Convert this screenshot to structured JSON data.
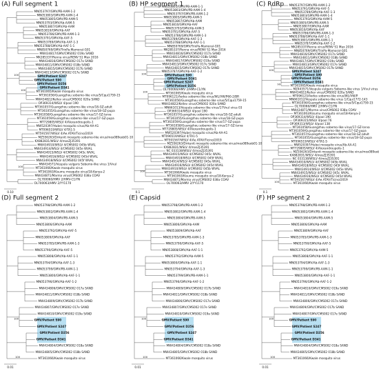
{
  "panels": [
    {
      "title": "(A) Full segment 1",
      "scale": "0.10",
      "leaves": [
        "MN053797/GMV/PB-AAM-1-2",
        "MN053803/GMV/PB-AAM-1-4",
        "MN053805/GMV/PB-AAM-5",
        "MN053793/GMV/Ab-AAM-5",
        "MN053807/GMV/Ab-AAM",
        "MN053810/GMV/Ab-AAF",
        "MN053786/GMV/PB-AAM-1-3",
        "MN053791/GMV/Ab-AAF-5",
        "MN053789/GMV/Ab-AAF-1-3",
        "MN053788/GMV/Ab-AAF-1-1",
        "MN850769/GMV/TrinPa-Mamoral-G01",
        "MW434817/GMV/CMS002 019a SAND",
        "MK285337/Renna virus/RENV S1 Max 2016",
        "MW434816/GMV/CMS002 017a SAND",
        "MW434811/GMV/CMS002 018b SAND",
        "MW434815/GMV/CMS002 017b SAND",
        "MW434813/GMV/CMS002 017e SAND",
        {
          "label": "GMV/Patient S247",
          "highlighted": true,
          "support": 100
        },
        {
          "label": "GMV/Patient S90",
          "highlighted": true
        },
        {
          "label": "GMV/Patient D256",
          "highlighted": true
        },
        {
          "label": "GMV/Patient D341",
          "highlighted": true
        },
        {
          "label": "MT361065/Kwale mosquito virus",
          "support": 100
        },
        "MT361056/Guangzhou sobemo-like virus/5/Cqui1759-15",
        "MW434822/Kellev virus/CMS002 020a SAND",
        "OP369314/WSLV 4/pool 190",
        "MT361057/Guangzhou sobemo-like virus/18-GZ-adult",
        "MT361055/Guangzhou sobemo-like virus/18-GZ-pupa",
        "MT361058/Guangzhou sobemo-like virus/17-GZ-larva",
        "MT361059/Guangzhou sobemo-like virus/17-GZ-pupa",
        "MT729805/WSLV 4/Alexandroupolis-1",
        "MW520397/Hubei mosquito virus/Ab-AA-A1",
        "MT096519/WSLV 4/TA1-5",
        "MT591567/WSLV 4/Ae.ATAV/Ticino/2019",
        "MZ556263/Dirkunit mosquito sobemo-like virus/mos089eob01-10",
        "KX882831/WSLV 4/mosZJ35391",
        "MW434910/WSLV 4/CMS002 045b WVAL",
        "MW434914/WSLV 4/CMS002 045e WVAL",
        "MW434915/WSLV 4/CMS002 045c WVAL",
        "MW434916/WSLV 4/CMS002 045d WVAL",
        "MW434918/WSLV 4/CMS002 045f WVAL",
        "MW434571/Vespula vulgaris Sobemo-like virus 1/Vvul",
        {
          "label": "MT361066/Kwale mosquito virus",
          "support": 100
        },
        "MT361063/Kisumu mosquito virus/18-Kenya-2",
        "MW434871/Marma virus/CMS002 038a COAV",
        "OL700060/HMV 2/HMV-C1/YN",
        "OL700063/HMV 2/YY1170"
      ]
    },
    {
      "title": "(B) HP segment 1",
      "scale": "0.1",
      "leaves": [
        "MN053801/GMV/PB-AAM-1-1",
        "MN053803/GMV/PB-AAM-1-4",
        "MN053797/GMV/PB-AAM-1-2",
        "MN053805/GMV/PB-AAM-5",
        "MN053807/GMV/Ab-AAM",
        "MN053810/GMV/Ab-AAF",
        "MN053793/GMV/Ab-AAM-5",
        "MN053791/GMV/Ab-AAF-5",
        "MN053786/GMV/PB-AAM-1-3",
        "MN053789/GMV/Ab-AAF-1-3",
        "MN053788/GMV/Ab-AAF-1-1",
        "MN850769/GMV/TrinPa-Mamoral-G01",
        "MK285337/Renna virus/RENV S1 Max 2016",
        "MW434816/GMV/CMS002 017a SAND",
        "MW434811/GMV/CMS002 018b SAND",
        "MW434817/GMV/CMS002 019a SAND",
        "MW434813/GMV/CMS002 017e SAND",
        "MW434815/GMV/CMS002 017b SAND",
        "MN053787/GMV/Ab-AAF-1-2",
        {
          "label": "GMV/Patient S90",
          "highlighted": true,
          "support": 100
        },
        {
          "label": "GMV/Patient D341",
          "highlighted": true
        },
        {
          "label": "GMV/Patient S247",
          "highlighted": true
        },
        {
          "label": "GMV/Patient D256",
          "highlighted": true
        },
        "OL700066/HMV 2/HMV-C1/YN",
        {
          "label": "MT361065/Kwale mosquito virus",
          "support": 100
        },
        "MT096121/Aedes sobemo-like virus/WL/VW/P60-2/BR",
        "MT361056/Guangzhou sobemo-like virus/5/Cqui1759-15",
        "MW434822/Kellev virus/CMS002 020a SAND",
        "MN661013/Vespula sobemo-like virus/17Vvul virus 03",
        "OP369314/WSLV 4/pool 190",
        "MT361057/Guangzhou sobemo-like virus/18-GZ-adult",
        "MT361055/Guangzhou sobemo-like virus/18-GZ-pupa",
        "MT361059/Guangzhou sobemo-like virus/17-GZ-pupa",
        "MT361058/Guangzhou sobemo-like virus/17-GZ-larva",
        "MT729805/WSLV 4/Alexandroupolis-1",
        "MW520397/Hubei mosquito virus/Ab-AA-A1",
        "MT096519/WSLV 4/TA1-5",
        "MT591567/WSLV 4/Ae.ATAV/Ticino/2019",
        "MZ556263/Dirkunit mosquito sobemo-like virus/mos089eob01-10",
        "KX882831/WSLV 4/mosZJ35391",
        "NC 033138/WSLV 4/mosZJ35391",
        "MW434915/WSLV 4/CMS002 045c WVAL",
        "MW434918/WSLV 4/CMS002 045f WVAL",
        "MW434914/WSLV 4/CMS002 045e WVAL",
        "MW434916/WSLV 4/CMS002 045d WVAL",
        "MW434910/WSLV 4/CMS002 045b WVAL",
        {
          "label": "MT361066/Kwale mosquito virus",
          "support": 100
        },
        "MT361063/Kisumu mosquito virus/18-Kenya-2",
        "MW434871/Marma virus/CMS002 038a COAV",
        "OL700063/HMV 2/YY1170"
      ]
    },
    {
      "title": "(C) RdRp",
      "scale": "0.1",
      "leaves": [
        "MN053797/GMV/PB-AAM-1-2",
        "MN053791/GMV/Ab-AAF-5",
        "MN053789/GMV/Ab-AAF-1-3",
        "MN053803/GMV/PB-AAM-1-4",
        "MN053793/GMV/Ab-AAM-5",
        "MN053805/GMV/PB-AAM-5",
        "MN053807/GMV/Ab-AAM",
        "MN053810/GMV/Ab-AAF",
        "MN053786/GMV/PB-AAM-1-3",
        "MN053788/GMV/Ab-AAF-1-1",
        "MN053801/GMV/PB-AAM-1-1",
        "MN053787/GMV/Ab-AAF-1-2",
        "MK285337/Renna virus/RENV S1 Max 2016",
        "MN850769/GMV/TrinPa-Mamoral-G01",
        "MW434816/GMV/CMS002 017a SAND",
        "MW434811/GMV/CMS002 018b SAND",
        "MW434817/GMV/CMS002 019a SAND",
        "MW434813/GMV/CMS002 017e SAND",
        "MW434815/GMV/CMS002 017b SAND",
        {
          "label": "GMV/Patient S247",
          "highlighted": true,
          "support": 100
        },
        {
          "label": "GMV/Patient S90",
          "highlighted": true
        },
        {
          "label": "GMV/Patient D256",
          "highlighted": true
        },
        {
          "label": "GMV/Patient D341",
          "highlighted": true
        },
        {
          "label": "MT361065/Kwale mosquito virus",
          "support": 99
        },
        "MZ443571/Vespula vulgaris Sobemo-like virus 1/Vvul virus 03",
        "MW434822/Kellev virus/CMS002 020a SAND",
        "MT096123/Aedes sobemo-like virus/WL/VW/P",
        "MN661012/Vespula sobemo-like virus 1/Cqui1772-143",
        "MT361056/Guangzhou sobemo-like virus/5/Cqui1759-15",
        "OL700066/HMV 2/HMV-C1/YN",
        "MW434871/Marma virus/CMS002 038a COAV",
        "MT361063/Kisumu mosquito virus/18-Kenya-2",
        "OP369314/WSLV 4/pool 190",
        "OP369315/WSLV 4/pool 76",
        "OP369313/WSLV 4/pool 138",
        "MT361058/Guangzhou sobemo-like virus/17-GZ-larva",
        "MT361059/Guangzhou sobemo-like virus/17-GZ-pupa",
        "MT361057/Guangzhou sobemo-like virus/18-GZ-adult",
        "MT361055/Guangzhou sobemo-like virus/18-GZ-pupa",
        "MT096519/WSLV 4/TA1-5",
        "MW520397/Hubei mosquito virus/Ab-AA-A1",
        "MT729805/WSLV 4/Alexandroupolis-1",
        "MZ556263/Dirkunit mosquito sobemo-like virus/mos089eob01-10",
        "KX882831/WSLV 4/mosZJ35391",
        "NC 033138/WSLV 4/mosZJ35391",
        "MW434910/WSLV 4/CMS002 045b WVAL",
        "MW434918/WSLV 4/CMS002 045f WVAL",
        "MW434914/WSLV 4/CMS002 045e WVAL",
        "MW434915/WSLV 4/CMS002 045c WVAL",
        "MW434916/WSLV 4/CMS002 045d WVAL",
        "MT591567/WSLV 4/Ae.ATAV/Ticino/2019",
        {
          "label": "MT361066/Kwale mosquito virus",
          "support": 100
        }
      ]
    },
    {
      "title": "(D) Full segment 2",
      "scale": "0.01",
      "leaves": [
        "MN053798/GMV/PB-AAM-1-2",
        "MN053802/GMV/PB-AAM-1-4",
        "MN053804/GMV/PB-AAM-5",
        "MN053806/GMV/Ab-AAM",
        "MN053792/GMV/Ab-AAF-5",
        "MN053809/GMV/Ab-AAF",
        "MN053785/GMV/PB-AAM-1-3",
        "MN053790/GMV/Ab-AAF-5",
        "MN053808/GMV/Ab-AAF-1-1",
        "MN053794/GMV/Ab-AAF-1-3",
        "MN053799/GMV/PB-AAM-1-1",
        "MN053800/GMV/Ab-AAF-1-1",
        "MN053796/GMV/Ab-AAF-1-2",
        "MW434806/GMV/CMS002 017a SAND",
        "MW434811/GMV/CMS002 018b SAND",
        "MW434809/GMV/CMS002 017b SAND",
        "MW434807/GMV/CMS002 017e SAND",
        "MW434810/GMV/CMS002 019a SAND",
        {
          "label": "GMV/Patient S90",
          "highlighted": true,
          "support": 100
        },
        {
          "label": "GMV/Patient S247",
          "highlighted": true
        },
        {
          "label": "GMV/Patient D256",
          "highlighted": true
        },
        {
          "label": "GMV/Patient D341",
          "highlighted": true
        },
        "MW434804/GMV/CMS002 018a SAND",
        "MW434805/GMV/CMS002 018b SAND",
        {
          "label": "MT361066/Kwale mosquito virus",
          "support": 100
        }
      ]
    },
    {
      "title": "(E) Capsid",
      "scale": "0.01",
      "leaves": [
        "MN053798/GMV/PB-AAM-1-2",
        "MN053802/GMV/PB-AAM-1-4",
        "MN053804/GMV/PB-AAM-5",
        "MN053806/GMV/Ab-AAM",
        "MN053809/GMV/Ab-AAF",
        "MN053785/GMV/PB-AAM-1-3",
        "MN053790/GMV/Ab-AAF-5",
        "MN053808/GMV/Ab-AAF-1-1",
        "MN053792/GMV/Ab-AAM-5",
        "MN053800/GMV/Ab-AAF-1-1",
        "MN053794/GMV/Ab-AAF-1-3",
        "MN053799/GMV/PB-AAM-1-1",
        "MN053796/GMV/Ab-AAF-1-2",
        "MW434809/GMV/CMS002 017b SAND",
        "MW434811/GMV/CMS002 018b SAND",
        "MW434806/GMV/CMS002 017a SAND",
        "MW434807/GMV/CMS002 017e SAND",
        "MW434810/GMV/CMS002 019a SAND",
        {
          "label": "GMV/Patient S90",
          "highlighted": true,
          "support": 100
        },
        {
          "label": "GMV/Patient D256",
          "highlighted": true
        },
        {
          "label": "GMV/Patient S247",
          "highlighted": true
        },
        {
          "label": "GMV/Patient D341",
          "highlighted": true
        },
        "MW434804/GMV/CMS002 018a SAND",
        "MW434805/GMV/CMS002 018b SAND",
        {
          "label": "MT361066/Kwale mosquito virus",
          "support": 100
        }
      ]
    },
    {
      "title": "(F) HP segment 2",
      "scale": "0.01",
      "leaves": [
        "MN053798/GMV/PB-AAM-1-2",
        "MN053802/GMV/PB-AAM-1-4",
        "MN053804/GMV/PB-AAM-5",
        "MN053806/GMV/Ab-AAM",
        "MN053809/GMV/Ab-AAF",
        "MN053785/GMV/PB-AAM-1-3",
        "MN053790/GMV/Ab-AAF-5",
        "MN053792/GMV/Ab-AAM-5",
        "MN053808/GMV/Ab-AAF-1-1",
        "MN053794/GMV/Ab-AAF-1-3",
        "MN053799/GMV/PB-AAM-1-1",
        "MN053800/GMV/Ab-AAF-1-1",
        "MN053796/GMV/Ab-AAF-1-2",
        "MW434810/GMV/CMS002 019a SAND",
        "MW434811/GMV/CMS002 018b SAND",
        "MW434806/GMV/CMS002 017a SAND",
        "MW434809/GMV/CMS002 017b SAND",
        "MW434807/GMV/CMS002 017e SAND",
        {
          "label": "GMV/Patient S90",
          "highlighted": true,
          "support": 100
        },
        {
          "label": "GMV/Patient S247",
          "highlighted": true
        },
        {
          "label": "GMV/Patient D256",
          "highlighted": true
        },
        {
          "label": "GMV/Patient D341",
          "highlighted": true
        },
        "MW434804/GMV/CMS002 018a SAND",
        "MW434805/GMV/CMS002 018b SAND",
        {
          "label": "MT361066/Kwale mosquito virus",
          "support": 100
        }
      ]
    }
  ]
}
